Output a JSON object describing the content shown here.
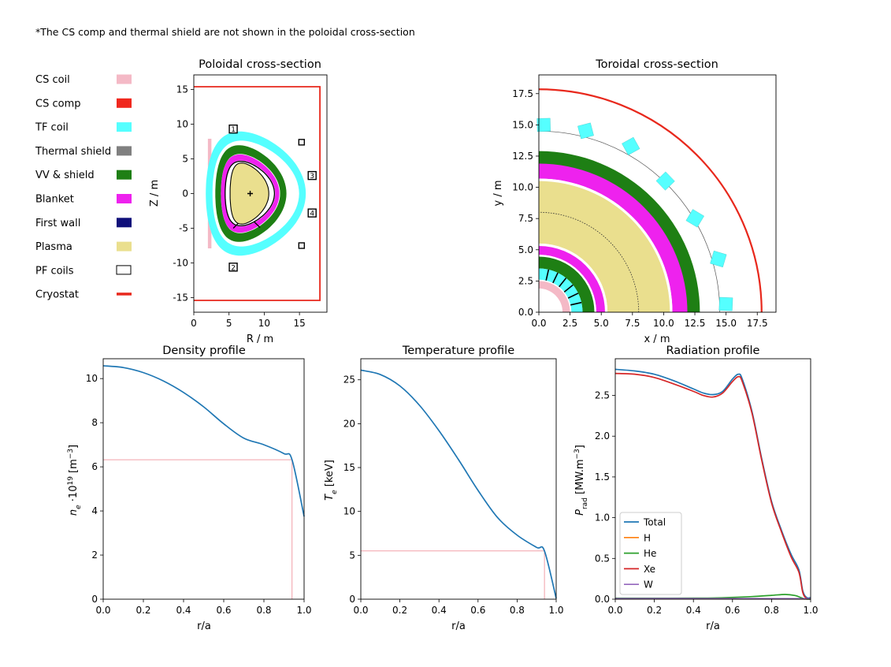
{
  "note": "*The CS comp and thermal shield are not shown in the poloidal cross-section",
  "colors": {
    "cs_coil": "#f4b9c6",
    "cs_comp": "#f0281e",
    "tf_coil": "#55ffff",
    "thermal_shield": "#808080",
    "vv_shield": "#1e7f14",
    "blanket": "#ee22ee",
    "first_wall": "#10107a",
    "plasma": "#eadf8e",
    "pf_coils": "#000000",
    "cryostat": "#e8281c",
    "total": "#1f77b4",
    "h": "#ff7f0e",
    "he": "#2ca02c",
    "xe": "#d62728",
    "w": "#9467bd",
    "pedestal": "#f2a0a8"
  },
  "legend": [
    {
      "label": "CS coil",
      "color": "#f4b9c6",
      "kind": "patch"
    },
    {
      "label": "CS comp",
      "color": "#f0281e",
      "kind": "patch"
    },
    {
      "label": "TF coil",
      "color": "#55ffff",
      "kind": "patch"
    },
    {
      "label": "Thermal shield",
      "color": "#808080",
      "kind": "patch"
    },
    {
      "label": "VV & shield",
      "color": "#1e7f14",
      "kind": "patch"
    },
    {
      "label": "Blanket",
      "color": "#ee22ee",
      "kind": "patch"
    },
    {
      "label": "First wall",
      "color": "#10107a",
      "kind": "patch"
    },
    {
      "label": "Plasma",
      "color": "#eadf8e",
      "kind": "patch"
    },
    {
      "label": "PF coils",
      "color": "#ffffff",
      "kind": "outline"
    },
    {
      "label": "Cryostat",
      "color": "#e8281c",
      "kind": "line"
    }
  ],
  "chart_data": [
    {
      "id": "poloidal",
      "type": "diagram",
      "title": "Poloidal cross-section",
      "xlabel": "R / m",
      "ylabel": "Z / m",
      "xlim": [
        0,
        18.9
      ],
      "ylim": [
        -17.1,
        17.1
      ],
      "xticks": [
        0,
        5,
        10,
        15
      ],
      "yticks": [
        -15,
        -10,
        -5,
        0,
        5,
        10,
        15
      ],
      "cryostat": {
        "r": 17.9,
        "z_top": 15.4,
        "z_bottom": -15.4
      },
      "cs_coil": {
        "r_in": 2.0,
        "r_out": 2.5,
        "z_top": 7.9,
        "z_bottom": -7.9
      },
      "plasma_center": [
        8.0,
        0.0
      ],
      "pf_coils": [
        {
          "label": "1",
          "r": 5.6,
          "z": 9.3
        },
        {
          "label": "2",
          "r": 5.6,
          "z": -10.6
        },
        {
          "label": "3",
          "r": 16.8,
          "z": 2.6
        },
        {
          "label": "4",
          "r": 16.8,
          "z": -2.8
        },
        {
          "label": "",
          "r": 15.3,
          "z": 7.4
        },
        {
          "label": "",
          "r": 15.3,
          "z": -7.5
        }
      ]
    },
    {
      "id": "toroidal",
      "type": "diagram",
      "title": "Toroidal cross-section",
      "xlabel": "x / m",
      "ylabel": "y / m",
      "xlim": [
        0,
        19.0
      ],
      "ylim": [
        0,
        19.0
      ],
      "xticks": [
        0.0,
        2.5,
        5.0,
        7.5,
        10.0,
        12.5,
        15.0,
        17.5
      ],
      "yticks": [
        0.0,
        2.5,
        5.0,
        7.5,
        10.0,
        12.5,
        15.0,
        17.5
      ],
      "tick_labels": [
        "0.0",
        "2.5",
        "5.0",
        "7.5",
        "10.0",
        "12.5",
        "15.0",
        "17.5"
      ],
      "cryostat_radius": 17.85,
      "thermal_shield_radius": 14.5,
      "plasma_axis_radius": 8.0,
      "outboard_rings": [
        {
          "component": "vv_shield",
          "r_in": 11.6,
          "r_out": 12.9
        },
        {
          "component": "blanket",
          "r_in": 10.7,
          "r_out": 11.9
        },
        {
          "component": "white",
          "r_in": 10.5,
          "r_out": 10.7
        },
        {
          "component": "plasma",
          "r_in": 5.5,
          "r_out": 10.5
        },
        {
          "component": "white",
          "r_in": 5.3,
          "r_out": 5.5
        },
        {
          "component": "blanket",
          "r_in": 4.6,
          "r_out": 5.3
        },
        {
          "component": "white",
          "r_in": 4.45,
          "r_out": 4.6
        },
        {
          "component": "vv_shield",
          "r_in": 3.5,
          "r_out": 4.45
        },
        {
          "component": "tf_coil",
          "r_in": 2.6,
          "r_out": 3.5
        },
        {
          "component": "white",
          "r_in": 2.5,
          "r_out": 2.6
        },
        {
          "component": "cs_coil",
          "r_in": 1.9,
          "r_out": 2.5
        }
      ],
      "tf_coil_blocks": [
        {
          "r": 15.0,
          "angle": 2.5
        },
        {
          "r": 15.0,
          "angle": 16.5
        },
        {
          "r": 14.6,
          "angle": 31
        },
        {
          "r": 14.6,
          "angle": 46
        },
        {
          "r": 15.2,
          "angle": 61
        },
        {
          "r": 15.0,
          "angle": 75.5
        },
        {
          "r": 15.0,
          "angle": 88.5
        }
      ]
    },
    {
      "id": "density",
      "type": "line",
      "title": "Density profile",
      "xlabel": "r/a",
      "ylabel": "n_e·10^19 [m^-3]",
      "xlim": [
        0,
        1
      ],
      "ylim": [
        0,
        10.9
      ],
      "xticks": [
        0.0,
        0.2,
        0.4,
        0.6,
        0.8,
        1.0
      ],
      "yticks": [
        0,
        2,
        4,
        6,
        8,
        10
      ],
      "series": [
        {
          "color": "#1f77b4",
          "x": [
            0,
            0.1,
            0.2,
            0.3,
            0.4,
            0.5,
            0.6,
            0.7,
            0.8,
            0.9,
            0.94,
            1.0
          ],
          "y": [
            10.58,
            10.5,
            10.27,
            9.89,
            9.37,
            8.72,
            7.95,
            7.3,
            7.0,
            6.6,
            6.32,
            3.75
          ]
        }
      ],
      "pedestal": {
        "x": 0.94,
        "y": 6.32
      }
    },
    {
      "id": "temperature",
      "type": "line",
      "title": "Temperature profile",
      "xlabel": "r/a",
      "ylabel": "T_e [keV]",
      "xlim": [
        0,
        1
      ],
      "ylim": [
        0,
        27.4
      ],
      "xticks": [
        0.0,
        0.2,
        0.4,
        0.6,
        0.8,
        1.0
      ],
      "yticks": [
        0,
        5,
        10,
        15,
        20,
        25
      ],
      "series": [
        {
          "color": "#1f77b4",
          "x": [
            0,
            0.1,
            0.2,
            0.3,
            0.4,
            0.5,
            0.6,
            0.7,
            0.8,
            0.9,
            0.94,
            1.0
          ],
          "y": [
            26.1,
            25.6,
            24.3,
            22.1,
            19.2,
            15.9,
            12.4,
            9.3,
            7.3,
            5.9,
            5.5,
            0.1
          ]
        }
      ],
      "pedestal": {
        "x": 0.94,
        "y": 5.5
      }
    },
    {
      "id": "radiation",
      "type": "line",
      "title": "Radiation profile",
      "xlabel": "r/a",
      "ylabel": "P_rad [MW.m^-3]",
      "xlim": [
        0,
        1
      ],
      "ylim": [
        0,
        2.95
      ],
      "xticks": [
        0.0,
        0.2,
        0.4,
        0.6,
        0.8,
        1.0
      ],
      "yticks": [
        0.0,
        0.5,
        1.0,
        1.5,
        2.0,
        2.5
      ],
      "legend_position": "lower-left",
      "series": [
        {
          "name": "Total",
          "color": "#1f77b4",
          "x": [
            0,
            0.1,
            0.2,
            0.3,
            0.4,
            0.45,
            0.5,
            0.55,
            0.6,
            0.63,
            0.65,
            0.7,
            0.75,
            0.8,
            0.85,
            0.9,
            0.94,
            0.96,
            0.98,
            1.0
          ],
          "y": [
            2.82,
            2.8,
            2.76,
            2.68,
            2.58,
            2.53,
            2.51,
            2.55,
            2.7,
            2.76,
            2.7,
            2.3,
            1.72,
            1.2,
            0.85,
            0.55,
            0.36,
            0.1,
            0.02,
            0.02
          ]
        },
        {
          "name": "H",
          "color": "#ff7f0e",
          "x": [
            0,
            0.5,
            0.9,
            0.95,
            1.0
          ],
          "y": [
            0.005,
            0.005,
            0.004,
            0.003,
            0.002
          ]
        },
        {
          "name": "He",
          "color": "#2ca02c",
          "x": [
            0,
            0.2,
            0.4,
            0.5,
            0.6,
            0.7,
            0.8,
            0.87,
            0.92,
            0.95,
            0.97,
            1.0
          ],
          "y": [
            0.012,
            0.012,
            0.013,
            0.015,
            0.022,
            0.032,
            0.047,
            0.058,
            0.045,
            0.02,
            0.005,
            0.0
          ]
        },
        {
          "name": "Xe",
          "color": "#d62728",
          "x": [
            0,
            0.1,
            0.2,
            0.3,
            0.4,
            0.45,
            0.5,
            0.55,
            0.6,
            0.63,
            0.65,
            0.7,
            0.75,
            0.8,
            0.85,
            0.9,
            0.94,
            0.96,
            0.98,
            1.0
          ],
          "y": [
            2.77,
            2.76,
            2.72,
            2.64,
            2.55,
            2.5,
            2.48,
            2.53,
            2.67,
            2.73,
            2.67,
            2.28,
            1.7,
            1.18,
            0.83,
            0.52,
            0.33,
            0.08,
            0.01,
            0.01
          ]
        },
        {
          "name": "W",
          "color": "#9467bd",
          "x": [
            0,
            0.5,
            1.0
          ],
          "y": [
            0.008,
            0.008,
            0.006
          ]
        }
      ]
    }
  ]
}
